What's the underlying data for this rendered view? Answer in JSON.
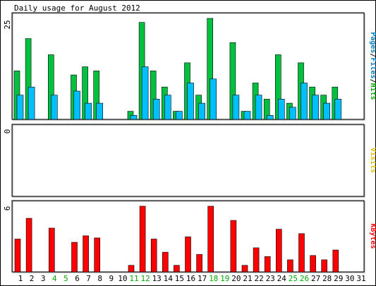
{
  "chart_data": {
    "type": "bar",
    "title": "Daily usage for August 2012",
    "days": [
      "1",
      "2",
      "3",
      "4",
      "5",
      "6",
      "7",
      "8",
      "9",
      "10",
      "11",
      "12",
      "13",
      "14",
      "15",
      "16",
      "17",
      "18",
      "19",
      "20",
      "21",
      "22",
      "23",
      "24",
      "25",
      "26",
      "27",
      "28",
      "29",
      "30",
      "31"
    ],
    "weekend_days": [
      "4",
      "5",
      "11",
      "12",
      "18",
      "19",
      "25",
      "26"
    ],
    "day_color": "#000000",
    "weekend_color": "#00aa00",
    "top_panel": {
      "ymax_label": "25",
      "ylim": [
        0,
        25
      ],
      "legend": [
        {
          "text": "Pages",
          "color": "#0080c0"
        },
        {
          "text": "/",
          "color": "#000000"
        },
        {
          "text": "Files",
          "color": "#0080c0"
        },
        {
          "text": "/",
          "color": "#000000"
        },
        {
          "text": "Hits",
          "color": "#00aa00"
        }
      ],
      "series": [
        {
          "name": "Hits",
          "color": "#00c040",
          "values": [
            12,
            20,
            0,
            16,
            0,
            11,
            13,
            12,
            0,
            0,
            2,
            24,
            12,
            8,
            2,
            14,
            6,
            25,
            0,
            19,
            2,
            9,
            5,
            16,
            4,
            14,
            8,
            6,
            8,
            0,
            0
          ]
        },
        {
          "name": "Files",
          "color": "#00bfff",
          "values": [
            6,
            8,
            0,
            6,
            0,
            7,
            4,
            4,
            0,
            0,
            1,
            13,
            5,
            6,
            2,
            9,
            4,
            10,
            0,
            6,
            2,
            6,
            1,
            5,
            3,
            9,
            6,
            4,
            5,
            0,
            0
          ]
        }
      ]
    },
    "middle_panel": {
      "ymax_label": "0",
      "ylim": [
        0,
        1
      ],
      "legend": [
        {
          "text": "Visits",
          "color": "#e0c000"
        }
      ],
      "series": [
        {
          "name": "Visits",
          "color": "#e0c000",
          "values": [
            0,
            0,
            0,
            0,
            0,
            0,
            0,
            0,
            0,
            0,
            0,
            0,
            0,
            0,
            0,
            0,
            0,
            0,
            0,
            0,
            0,
            0,
            0,
            0,
            0,
            0,
            0,
            0,
            0,
            0,
            0
          ]
        }
      ]
    },
    "bottom_panel": {
      "ymax_label": "6",
      "ylim": [
        0,
        6
      ],
      "legend": [
        {
          "text": "KBytes",
          "color": "#ff0000"
        }
      ],
      "series": [
        {
          "name": "KBytes",
          "color": "#ff0000",
          "values": [
            3.0,
            4.9,
            0,
            4.0,
            0,
            2.7,
            3.3,
            3.1,
            0,
            0,
            0.6,
            6.0,
            3.0,
            1.8,
            0.6,
            3.2,
            1.6,
            6.1,
            0,
            4.7,
            0.6,
            2.2,
            1.4,
            3.9,
            1.1,
            3.5,
            1.5,
            1.1,
            2.0,
            0,
            0
          ]
        }
      ]
    }
  }
}
